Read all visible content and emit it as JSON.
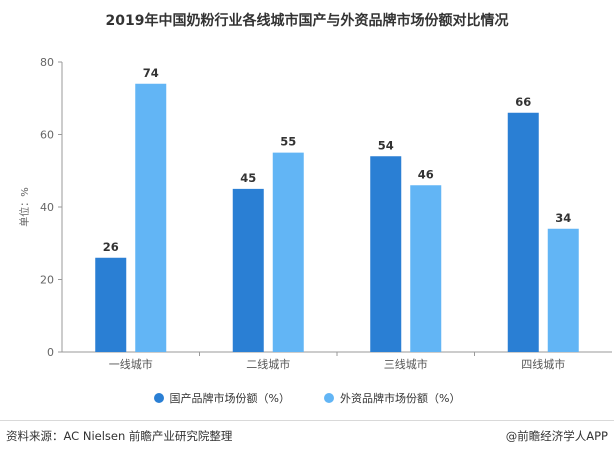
{
  "title": "2019年中国奶粉行业各线城市国产与外资品牌市场份额对比情况",
  "source_text": "资料来源：AC Nielsen 前瞻产业研究院整理",
  "credit_text": "@前瞻经济学人APP",
  "colors": {
    "domestic": "#2a7fd4",
    "foreign": "#62b5f5",
    "axis": "#999999",
    "grid": "#e6e6e6"
  },
  "chart_data": {
    "type": "bar",
    "categories": [
      "一线城市",
      "二线城市",
      "三线城市",
      "四线城市"
    ],
    "series": [
      {
        "name": "国产品牌市场份额（%）",
        "values": [
          26,
          45,
          54,
          66
        ]
      },
      {
        "name": "外资品牌市场份额（%）",
        "values": [
          74,
          55,
          46,
          34
        ]
      }
    ],
    "ylabel": "单位：%",
    "yticks": [
      0,
      20,
      40,
      60,
      80
    ],
    "ylim": [
      0,
      80
    ],
    "legend_position": "bottom"
  }
}
